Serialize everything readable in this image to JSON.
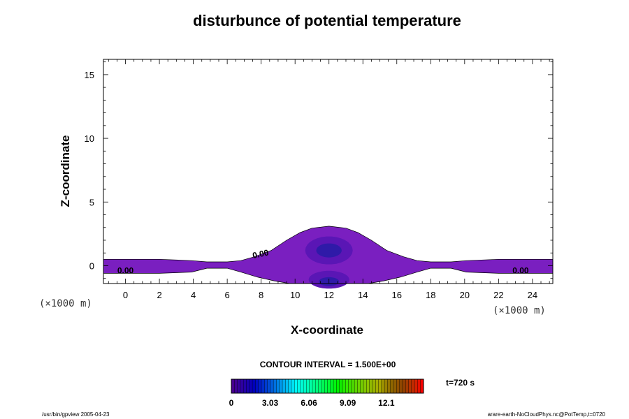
{
  "chart_data": {
    "type": "heatmap",
    "title": "disturbunce of potential temperature",
    "xlabel": "X-coordinate",
    "ylabel": "Z-coordinate",
    "x_unit": "(×1000 m)",
    "y_unit": "(×1000 m)",
    "xlim": [
      -1.3,
      25.2
    ],
    "ylim": [
      -1.4,
      16.2
    ],
    "x_ticks": [
      "0",
      "2",
      "4",
      "6",
      "8",
      "10",
      "12",
      "14",
      "16",
      "18",
      "20",
      "22",
      "24"
    ],
    "y_ticks": [
      "0",
      "5",
      "10",
      "15"
    ],
    "contour_interval_text": "CONTOUR INTERVAL = 1.500E+00",
    "time_text": "t=720 s",
    "contour_labels": [
      {
        "text": "0.00",
        "x": 0.0,
        "y": -0.6
      },
      {
        "text": "0.00",
        "x": 8.0,
        "y": 0.7
      },
      {
        "text": "0.00",
        "x": 23.3,
        "y": -0.6
      }
    ],
    "colorbar": {
      "tick_labels": [
        "0",
        "3.03",
        "6.06",
        "9.09",
        "12.1"
      ],
      "tick_values": [
        0,
        3.03,
        6.06,
        9.09,
        12.1
      ],
      "range": [
        0,
        15
      ],
      "colormap": "rainbow"
    },
    "regions": [
      {
        "level": "lowest",
        "color": "#7a1fc0"
      },
      {
        "level": "next",
        "color": "#5a16b5"
      },
      {
        "level": "core",
        "color": "#2f1aa8"
      }
    ],
    "grid": false
  },
  "footer": {
    "left": "/usr/bin/gpview 2005-04-23",
    "right": "arare-earth-NoCloudPhys.nc@PotTemp,t=0720"
  }
}
